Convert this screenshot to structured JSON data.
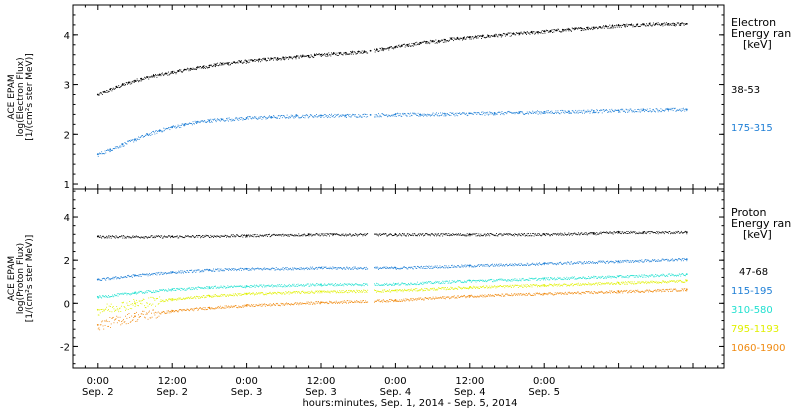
{
  "chart_data": [
    {
      "type": "scatter",
      "panel": "electron",
      "ylabel_lines": [
        "ACE EPAM",
        "log(Electron Flux)",
        "[1/(cm²s ster MeV)]"
      ],
      "ylim": [
        0.9,
        4.6
      ],
      "yticks": [
        1,
        2,
        3,
        4
      ],
      "legend_title_lines": [
        "Electron",
        "Energy ran",
        "[keV]"
      ],
      "series": [
        {
          "name": "38-53",
          "color": "#000000",
          "x": [
            0,
            1,
            2,
            3,
            4,
            5,
            6,
            7,
            8,
            9,
            10,
            11,
            12,
            13,
            14,
            15,
            16,
            17,
            18,
            19,
            20,
            21,
            22,
            23,
            24,
            25,
            26,
            27,
            28,
            29,
            30,
            31,
            32,
            33,
            34,
            35,
            36,
            37,
            38,
            39,
            40,
            41,
            42,
            43,
            44,
            45,
            46,
            47,
            48,
            49,
            50,
            51,
            52,
            53,
            54,
            55,
            56,
            57,
            58,
            59,
            60,
            61,
            62,
            63,
            64,
            65,
            66,
            67,
            68,
            69,
            70,
            71,
            72,
            73,
            74,
            75,
            76,
            77,
            78,
            79,
            80,
            81,
            82,
            83,
            84,
            85,
            86,
            87,
            88,
            89,
            90,
            91,
            92,
            93,
            94,
            95
          ],
          "y": [
            2.8,
            2.85,
            2.9,
            2.95,
            3.0,
            3.04,
            3.08,
            3.12,
            3.15,
            3.18,
            3.2,
            3.22,
            3.25,
            3.27,
            3.3,
            3.32,
            3.34,
            3.36,
            3.38,
            3.4,
            3.42,
            3.43,
            3.45,
            3.46,
            3.47,
            3.48,
            3.5,
            3.51,
            3.52,
            3.53,
            3.54,
            3.55,
            3.56,
            3.57,
            3.58,
            3.59,
            3.6,
            3.61,
            3.62,
            3.63,
            3.64,
            3.65,
            3.66,
            3.67,
            3.68,
            3.7,
            3.72,
            3.74,
            3.76,
            3.78,
            3.8,
            3.82,
            3.84,
            3.86,
            3.87,
            3.88,
            3.9,
            3.92,
            3.93,
            3.94,
            3.95,
            3.96,
            3.97,
            3.98,
            3.99,
            4.0,
            4.01,
            4.02,
            4.03,
            4.04,
            4.05,
            4.06,
            4.07,
            4.08,
            4.09,
            4.1,
            4.11,
            4.12,
            4.13,
            4.14,
            4.15,
            4.16,
            4.17,
            4.18,
            4.19,
            4.2,
            4.2,
            4.21,
            4.21,
            4.22,
            4.22,
            4.22,
            4.22,
            4.22,
            4.22,
            4.22
          ]
        },
        {
          "name": "175-315",
          "color": "#1f7fd6",
          "x": [
            0,
            2,
            4,
            6,
            8,
            10,
            12,
            14,
            16,
            18,
            20,
            24,
            28,
            32,
            36,
            40,
            44,
            48,
            52,
            56,
            60,
            64,
            68,
            72,
            76,
            80,
            84,
            88,
            92,
            95
          ],
          "y": [
            1.6,
            1.7,
            1.8,
            1.9,
            2.0,
            2.08,
            2.15,
            2.2,
            2.25,
            2.28,
            2.3,
            2.33,
            2.35,
            2.37,
            2.38,
            2.38,
            2.39,
            2.4,
            2.4,
            2.41,
            2.42,
            2.43,
            2.44,
            2.45,
            2.46,
            2.47,
            2.48,
            2.49,
            2.5,
            2.5
          ]
        }
      ]
    },
    {
      "type": "scatter",
      "panel": "proton",
      "ylabel_lines": [
        "ACE EPAM",
        "log(Proton Flux)",
        "[1/(cm²s ster MeV)]"
      ],
      "ylim": [
        -3.0,
        5.3
      ],
      "yticks": [
        -2,
        0,
        2,
        4
      ],
      "legend_title_lines": [
        "Proton",
        "Energy ran",
        "[keV]"
      ],
      "series": [
        {
          "name": "47-68",
          "color": "#000000",
          "x": [
            0,
            12,
            24,
            34,
            38,
            48,
            60,
            72,
            80,
            84,
            88,
            95
          ],
          "y": [
            3.1,
            3.1,
            3.15,
            3.2,
            3.2,
            3.2,
            3.2,
            3.2,
            3.25,
            3.3,
            3.3,
            3.3
          ]
        },
        {
          "name": "115-195",
          "color": "#1f7fd6",
          "x": [
            0,
            6,
            12,
            18,
            24,
            36,
            48,
            60,
            72,
            84,
            95
          ],
          "y": [
            1.1,
            1.3,
            1.45,
            1.55,
            1.6,
            1.65,
            1.65,
            1.75,
            1.85,
            1.95,
            2.05
          ]
        },
        {
          "name": "310-580",
          "color": "#22e0d0",
          "x": [
            0,
            6,
            12,
            18,
            24,
            36,
            48,
            60,
            72,
            84,
            95
          ],
          "y": [
            0.3,
            0.5,
            0.65,
            0.75,
            0.8,
            0.88,
            0.9,
            1.05,
            1.15,
            1.25,
            1.35
          ]
        },
        {
          "name": "795-1193",
          "color": "#e0f000",
          "x": [
            0,
            6,
            12,
            18,
            24,
            36,
            48,
            60,
            72,
            84,
            95
          ],
          "y": [
            -0.3,
            0.0,
            0.2,
            0.35,
            0.45,
            0.55,
            0.6,
            0.75,
            0.85,
            0.95,
            1.05
          ]
        },
        {
          "name": "1060-1900",
          "color": "#f08a10",
          "x": [
            0,
            6,
            12,
            18,
            24,
            36,
            48,
            60,
            72,
            84,
            95
          ],
          "y": [
            -1.0,
            -0.6,
            -0.35,
            -0.2,
            -0.1,
            0.05,
            0.15,
            0.35,
            0.45,
            0.55,
            0.65
          ]
        }
      ]
    }
  ],
  "x_axis": {
    "xlim": [
      -4,
      101
    ],
    "ticks": [
      {
        "x": 0,
        "time": "0:00",
        "date": "Sep. 2"
      },
      {
        "x": 12,
        "time": "12:00",
        "date": "Sep. 2"
      },
      {
        "x": 24,
        "time": "0:00",
        "date": "Sep. 3"
      },
      {
        "x": 36,
        "time": "12:00",
        "date": "Sep. 3"
      },
      {
        "x": 48,
        "time": "0:00",
        "date": "Sep. 4"
      },
      {
        "x": 60,
        "time": "12:00",
        "date": "Sep. 4"
      },
      {
        "x": 72,
        "time": "0:00",
        "date": "Sep. 5"
      }
    ],
    "label": "hours:minutes, Sep.  1, 2014 - Sep.  5, 2014",
    "data_gap": [
      43.5,
      44.5
    ]
  }
}
